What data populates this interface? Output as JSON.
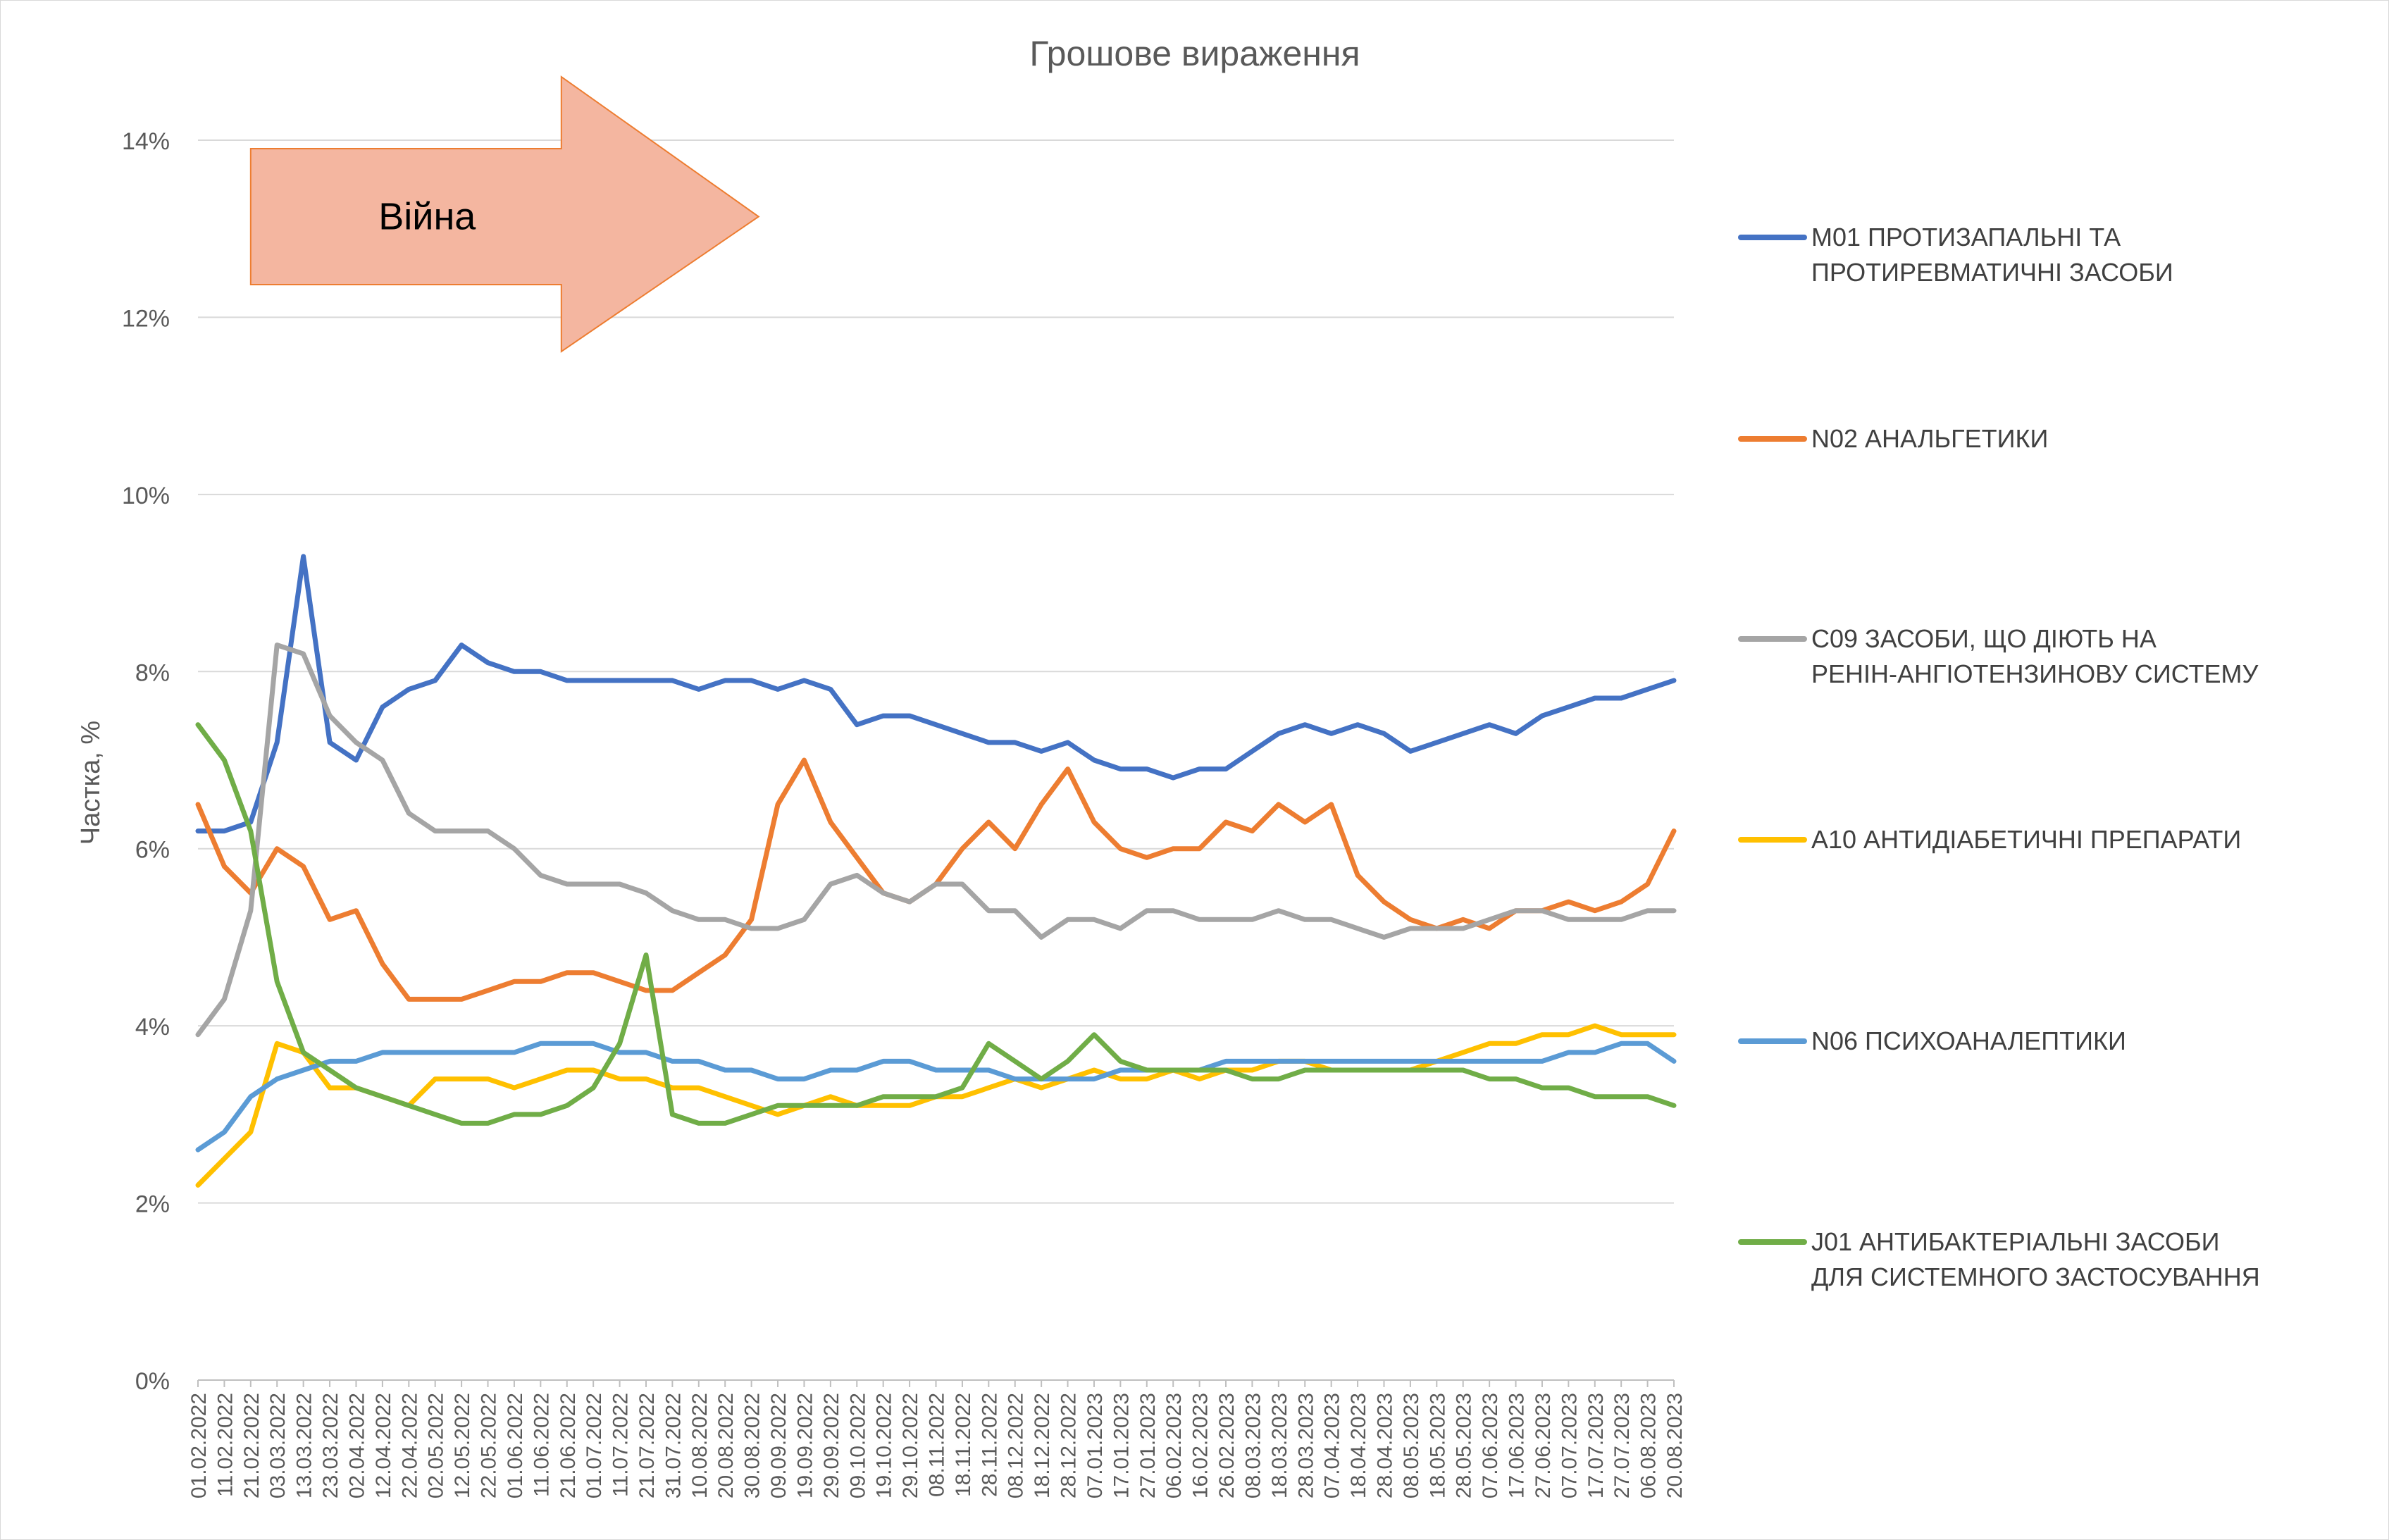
{
  "chart_data": {
    "type": "line",
    "title": "Грошове вираження",
    "xlabel": "",
    "ylabel": "Частка, %",
    "ylim": [
      0,
      14
    ],
    "y_ticks": [
      "0%",
      "2%",
      "4%",
      "6%",
      "8%",
      "10%",
      "12%",
      "14%"
    ],
    "grid": "horizontal",
    "legend_position": "right",
    "annotation": {
      "text": "Війна",
      "from": "21.02.2022",
      "to": "10.08.2022",
      "fill": "#f4b6a0",
      "stroke": "#ed7d31"
    },
    "x_tick_labels": [
      "01.02.2022",
      "11.02.2022",
      "21.02.2022",
      "03.03.2022",
      "13.03.2022",
      "23.03.2022",
      "02.04.2022",
      "12.04.2022",
      "22.04.2022",
      "02.05.2022",
      "12.05.2022",
      "22.05.2022",
      "01.06.2022",
      "11.06.2022",
      "21.06.2022",
      "01.07.2022",
      "11.07.2022",
      "21.07.2022",
      "31.07.2022",
      "10.08.2022",
      "20.08.2022",
      "30.08.2022",
      "09.09.2022",
      "19.09.2022",
      "29.09.2022",
      "09.10.2022",
      "19.10.2022",
      "29.10.2022",
      "08.11.2022",
      "18.11.2022",
      "28.11.2022",
      "08.12.2022",
      "18.12.2022",
      "28.12.2022",
      "07.01.2023",
      "17.01.2023",
      "27.01.2023",
      "06.02.2023",
      "16.02.2023",
      "26.02.2023",
      "08.03.2023",
      "18.03.2023",
      "28.03.2023",
      "07.04.2023",
      "18.04.2023",
      "28.04.2023",
      "08.05.2023",
      "18.05.2023",
      "28.05.2023",
      "07.06.2023",
      "17.06.2023",
      "27.06.2023",
      "07.07.2023",
      "17.07.2023",
      "27.07.2023",
      "06.08.2023",
      "20.08.2023"
    ],
    "x_step_days": 10,
    "series": [
      {
        "name": "M01 ПРОТИЗАПАЛЬНІ ТА ПРОТИРЕВМАТИЧНІ ЗАСОБИ",
        "color": "#4472c4",
        "values": [
          6.2,
          6.2,
          6.3,
          7.2,
          9.3,
          7.2,
          7.0,
          7.6,
          7.8,
          7.9,
          8.3,
          8.1,
          8.0,
          8.0,
          7.9,
          7.9,
          7.9,
          7.9,
          7.9,
          7.8,
          7.9,
          7.9,
          7.8,
          7.9,
          7.8,
          7.4,
          7.5,
          7.5,
          7.4,
          7.3,
          7.2,
          7.2,
          7.1,
          7.2,
          7.0,
          6.9,
          6.9,
          6.8,
          6.9,
          6.9,
          7.1,
          7.3,
          7.4,
          7.3,
          7.4,
          7.3,
          7.1,
          7.2,
          7.3,
          7.4,
          7.3,
          7.5,
          7.6,
          7.7,
          7.7,
          7.8,
          7.9
        ]
      },
      {
        "name": "N02 АНАЛЬГЕТИКИ",
        "color": "#ed7d31",
        "values": [
          6.5,
          5.8,
          5.5,
          6.0,
          5.8,
          5.2,
          5.3,
          4.7,
          4.3,
          4.3,
          4.3,
          4.4,
          4.5,
          4.5,
          4.6,
          4.6,
          4.5,
          4.4,
          4.4,
          4.6,
          4.8,
          5.2,
          6.5,
          7.0,
          6.3,
          5.9,
          5.5,
          5.4,
          5.6,
          6.0,
          6.3,
          6.0,
          6.5,
          6.9,
          6.3,
          6.0,
          5.9,
          6.0,
          6.0,
          6.3,
          6.2,
          6.5,
          6.3,
          6.5,
          5.7,
          5.4,
          5.2,
          5.1,
          5.2,
          5.1,
          5.3,
          5.3,
          5.4,
          5.3,
          5.4,
          5.6,
          6.2
        ]
      },
      {
        "name": "C09 ЗАСОБИ, ЩО ДІЮТЬ НА РЕНІН-АНГІОТЕНЗИНОВУ СИСТЕМУ",
        "color": "#a5a5a5",
        "values": [
          3.9,
          4.3,
          5.3,
          8.3,
          8.2,
          7.5,
          7.2,
          7.0,
          6.4,
          6.2,
          6.2,
          6.2,
          6.0,
          5.7,
          5.6,
          5.6,
          5.6,
          5.5,
          5.3,
          5.2,
          5.2,
          5.1,
          5.1,
          5.2,
          5.6,
          5.7,
          5.5,
          5.4,
          5.6,
          5.6,
          5.3,
          5.3,
          5.0,
          5.2,
          5.2,
          5.1,
          5.3,
          5.3,
          5.2,
          5.2,
          5.2,
          5.3,
          5.2,
          5.2,
          5.1,
          5.0,
          5.1,
          5.1,
          5.1,
          5.2,
          5.3,
          5.3,
          5.2,
          5.2,
          5.2,
          5.3,
          5.3
        ]
      },
      {
        "name": "A10 АНТИДІАБЕТИЧНІ ПРЕПАРАТИ",
        "color": "#ffc000",
        "values": [
          2.2,
          2.5,
          2.8,
          3.8,
          3.7,
          3.3,
          3.3,
          3.2,
          3.1,
          3.4,
          3.4,
          3.4,
          3.3,
          3.4,
          3.5,
          3.5,
          3.4,
          3.4,
          3.3,
          3.3,
          3.2,
          3.1,
          3.0,
          3.1,
          3.2,
          3.1,
          3.1,
          3.1,
          3.2,
          3.2,
          3.3,
          3.4,
          3.3,
          3.4,
          3.5,
          3.4,
          3.4,
          3.5,
          3.4,
          3.5,
          3.5,
          3.6,
          3.6,
          3.5,
          3.5,
          3.5,
          3.5,
          3.6,
          3.7,
          3.8,
          3.8,
          3.9,
          3.9,
          4.0,
          3.9,
          3.9,
          3.9
        ]
      },
      {
        "name": "N06 ПСИХОАНАЛЕПТИКИ",
        "color": "#5b9bd5",
        "values": [
          2.6,
          2.8,
          3.2,
          3.4,
          3.5,
          3.6,
          3.6,
          3.7,
          3.7,
          3.7,
          3.7,
          3.7,
          3.7,
          3.8,
          3.8,
          3.8,
          3.7,
          3.7,
          3.6,
          3.6,
          3.5,
          3.5,
          3.4,
          3.4,
          3.5,
          3.5,
          3.6,
          3.6,
          3.5,
          3.5,
          3.5,
          3.4,
          3.4,
          3.4,
          3.4,
          3.5,
          3.5,
          3.5,
          3.5,
          3.6,
          3.6,
          3.6,
          3.6,
          3.6,
          3.6,
          3.6,
          3.6,
          3.6,
          3.6,
          3.6,
          3.6,
          3.6,
          3.7,
          3.7,
          3.8,
          3.8,
          3.6
        ]
      },
      {
        "name": "J01 АНТИБАКТЕРІАЛЬНІ ЗАСОБИ ДЛЯ СИСТЕМНОГО ЗАСТОСУВАННЯ",
        "color": "#70ad47",
        "values": [
          7.4,
          7.0,
          6.2,
          4.5,
          3.7,
          3.5,
          3.3,
          3.2,
          3.1,
          3.0,
          2.9,
          2.9,
          3.0,
          3.0,
          3.1,
          3.3,
          3.8,
          4.8,
          3.0,
          2.9,
          2.9,
          3.0,
          3.1,
          3.1,
          3.1,
          3.1,
          3.2,
          3.2,
          3.2,
          3.3,
          3.8,
          3.6,
          3.4,
          3.6,
          3.9,
          3.6,
          3.5,
          3.5,
          3.5,
          3.5,
          3.4,
          3.4,
          3.5,
          3.5,
          3.5,
          3.5,
          3.5,
          3.5,
          3.5,
          3.4,
          3.4,
          3.3,
          3.3,
          3.2,
          3.2,
          3.2,
          3.1
        ]
      }
    ]
  }
}
